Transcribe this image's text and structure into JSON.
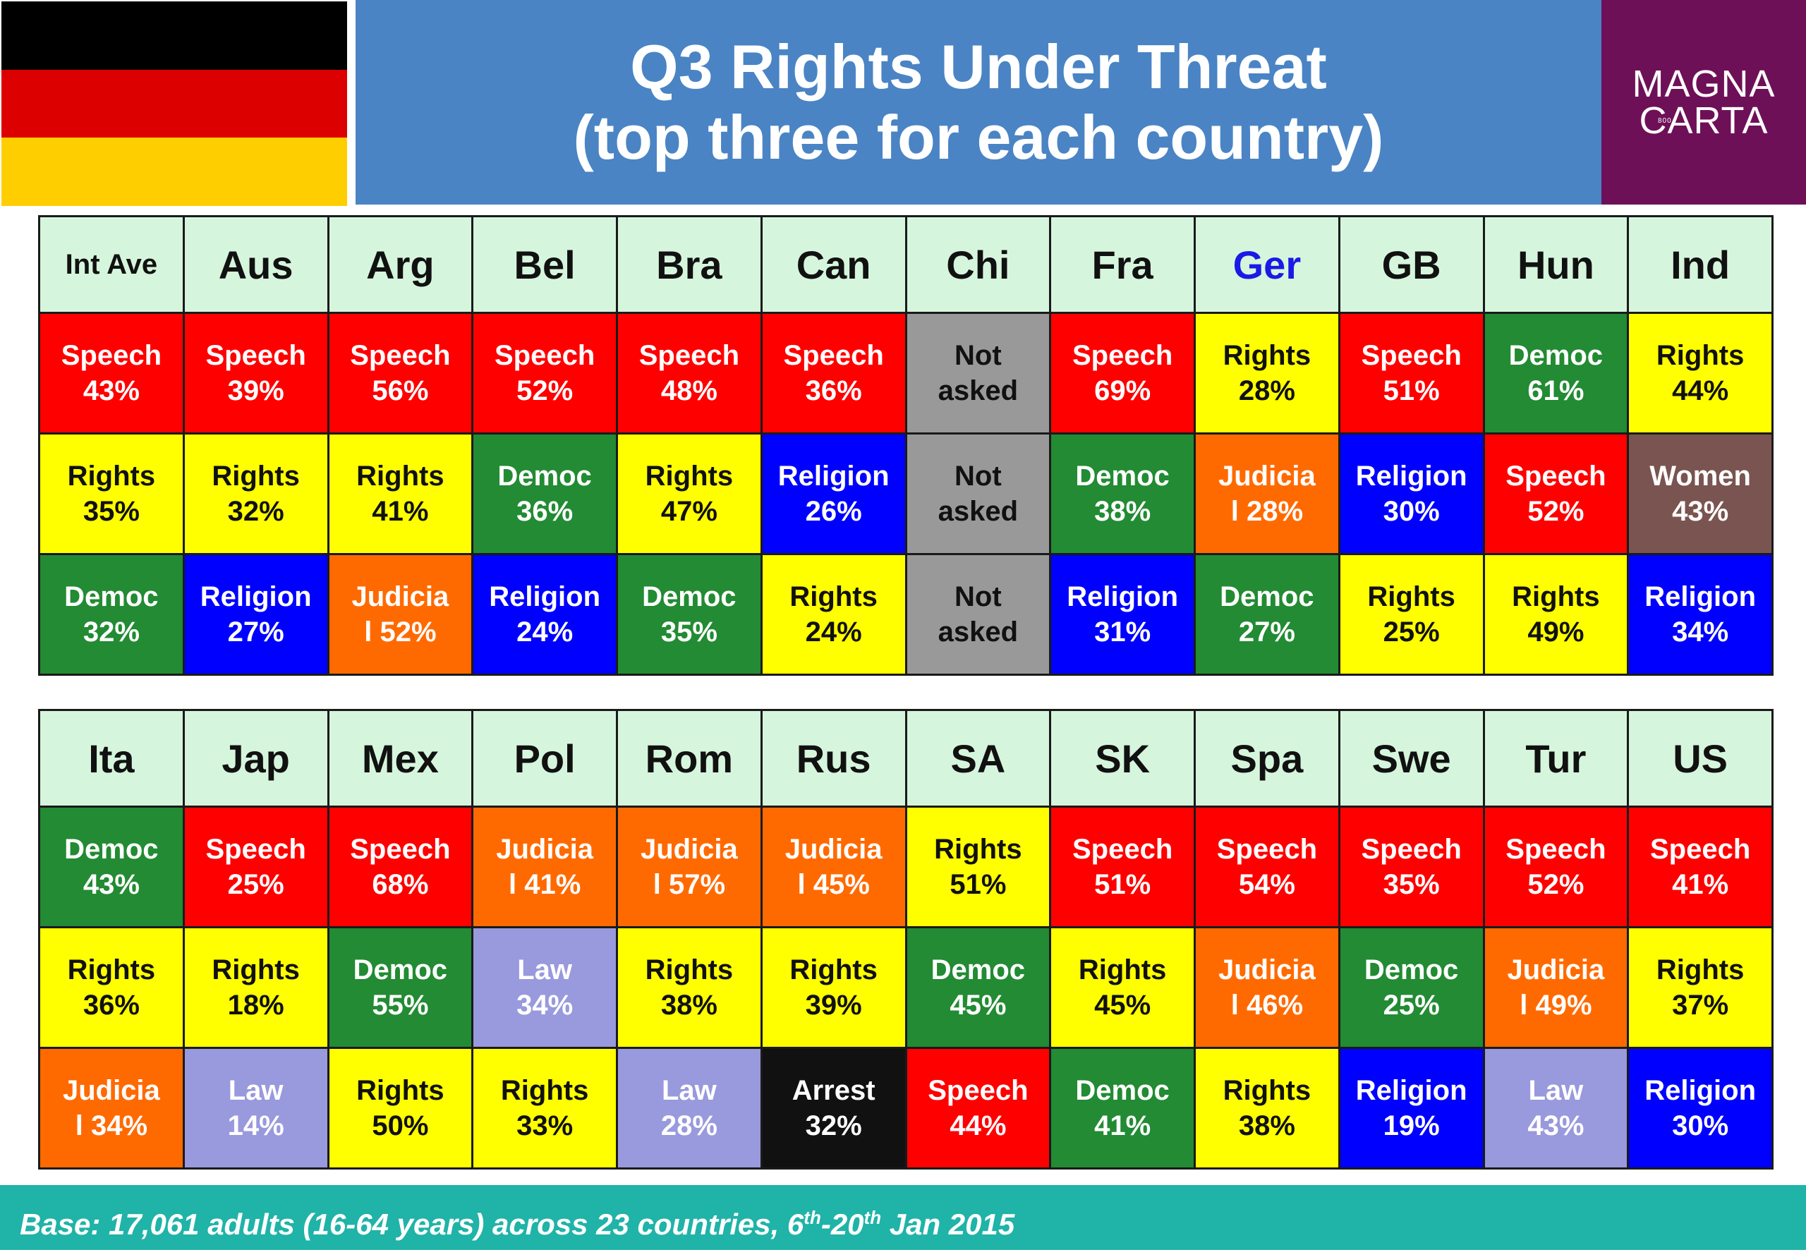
{
  "title_line1": "Q3 Rights Under Threat",
  "title_line2": "(top three for each country)",
  "logo": {
    "line1": "MAGNA",
    "line2": "CARTA",
    "tiny": "800"
  },
  "flag_colors": [
    "#000000",
    "#dd0000",
    "#ffce00"
  ],
  "category_colors": {
    "Speech": "#ff0000",
    "Rights": "#ffff00",
    "Democ": "#228b33",
    "Religion": "#0000ff",
    "Judicial": "#ff6a00",
    "Law": "#9999dd",
    "Women": "#7a5450",
    "Arrest": "#111111",
    "Not asked": "#999999"
  },
  "footer": {
    "text": "Base: 17,061 adults (16-64 years) across 23 countries, 6",
    "sup1": "th",
    "mid": "-20",
    "sup2": "th",
    "end": " Jan 2015"
  },
  "chart_data": {
    "type": "table",
    "title": "Q3 Rights Under Threat (top three for each country)",
    "tables": [
      {
        "columns": [
          "Int Ave",
          "Aus",
          "Arg",
          "Bel",
          "Bra",
          "Can",
          "Chi",
          "Fra",
          "Ger",
          "GB",
          "Hun",
          "Ind"
        ],
        "rows": [
          [
            [
              "Speech",
              "43%"
            ],
            [
              "Speech",
              "39%"
            ],
            [
              "Speech",
              "56%"
            ],
            [
              "Speech",
              "52%"
            ],
            [
              "Speech",
              "48%"
            ],
            [
              "Speech",
              "36%"
            ],
            [
              "Not asked",
              ""
            ],
            [
              "Speech",
              "69%"
            ],
            [
              "Rights",
              "28%"
            ],
            [
              "Speech",
              "51%"
            ],
            [
              "Democ",
              "61%"
            ],
            [
              "Rights",
              "44%"
            ]
          ],
          [
            [
              "Rights",
              "35%"
            ],
            [
              "Rights",
              "32%"
            ],
            [
              "Rights",
              "41%"
            ],
            [
              "Democ",
              "36%"
            ],
            [
              "Rights",
              "47%"
            ],
            [
              "Religion",
              "26%"
            ],
            [
              "Not asked",
              ""
            ],
            [
              "Democ",
              "38%"
            ],
            [
              "Judicial",
              "28%"
            ],
            [
              "Religion",
              "30%"
            ],
            [
              "Speech",
              "52%"
            ],
            [
              "Women",
              "43%"
            ]
          ],
          [
            [
              "Democ",
              "32%"
            ],
            [
              "Religion",
              "27%"
            ],
            [
              "Judicial",
              "52%"
            ],
            [
              "Religion",
              "24%"
            ],
            [
              "Democ",
              "35%"
            ],
            [
              "Rights",
              "24%"
            ],
            [
              "Not asked",
              ""
            ],
            [
              "Religion",
              "31%"
            ],
            [
              "Democ",
              "27%"
            ],
            [
              "Rights",
              "25%"
            ],
            [
              "Rights",
              "49%"
            ],
            [
              "Religion",
              "34%"
            ]
          ]
        ]
      },
      {
        "columns": [
          "Ita",
          "Jap",
          "Mex",
          "Pol",
          "Rom",
          "Rus",
          "SA",
          "SK",
          "Spa",
          "Swe",
          "Tur",
          "US"
        ],
        "rows": [
          [
            [
              "Democ",
              "43%"
            ],
            [
              "Speech",
              "25%"
            ],
            [
              "Speech",
              "68%"
            ],
            [
              "Judicial",
              "41%"
            ],
            [
              "Judicial",
              "57%"
            ],
            [
              "Judicial",
              "45%"
            ],
            [
              "Rights",
              "51%"
            ],
            [
              "Speech",
              "51%"
            ],
            [
              "Speech",
              "54%"
            ],
            [
              "Speech",
              "35%"
            ],
            [
              "Speech",
              "52%"
            ],
            [
              "Speech",
              "41%"
            ]
          ],
          [
            [
              "Rights",
              "36%"
            ],
            [
              "Rights",
              "18%"
            ],
            [
              "Democ",
              "55%"
            ],
            [
              "Law",
              "34%"
            ],
            [
              "Rights",
              "38%"
            ],
            [
              "Rights",
              "39%"
            ],
            [
              "Democ",
              "45%"
            ],
            [
              "Rights",
              "45%"
            ],
            [
              "Judicial",
              "46%"
            ],
            [
              "Democ",
              "25%"
            ],
            [
              "Judicial",
              "49%"
            ],
            [
              "Rights",
              "37%"
            ]
          ],
          [
            [
              "Judicial",
              "34%"
            ],
            [
              "Law",
              "14%"
            ],
            [
              "Rights",
              "50%"
            ],
            [
              "Rights",
              "33%"
            ],
            [
              "Law",
              "28%"
            ],
            [
              "Arrest",
              "32%"
            ],
            [
              "Speech",
              "44%"
            ],
            [
              "Democ",
              "41%"
            ],
            [
              "Rights",
              "38%"
            ],
            [
              "Religion",
              "19%"
            ],
            [
              "Law",
              "43%"
            ],
            [
              "Religion",
              "30%"
            ]
          ]
        ]
      }
    ],
    "display_labels": {
      "Not asked": [
        "Not",
        "asked"
      ],
      "Judicial": [
        "Judicia",
        "l "
      ]
    },
    "highlight_column": "Ger"
  }
}
